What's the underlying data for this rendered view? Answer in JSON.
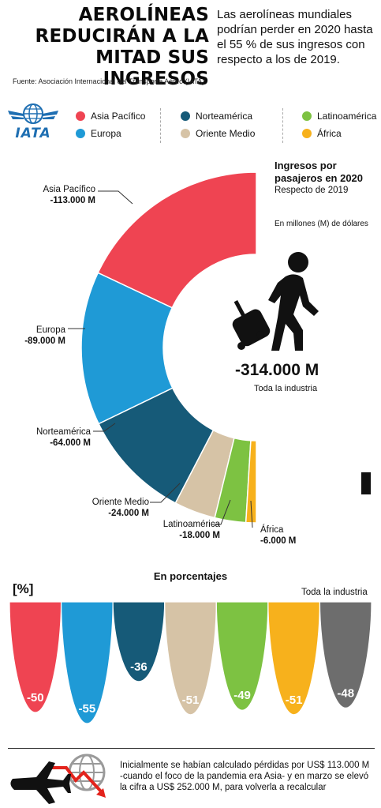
{
  "header": {
    "title_lines": [
      "AEROLÍNEAS",
      "REDUCIRÁN A LA",
      "MITAD SUS INGRESOS"
    ],
    "subtitle": "Las aerolíneas mundiales podrían perder en 2020 hasta el 55 % de sus ingresos con respecto a los de 2019.",
    "source": "Fuente: Asociación Internacional del Transporte Aéreo (IATA)"
  },
  "logo": {
    "text": "IATA"
  },
  "legend": [
    {
      "name": "Asia Pacífico",
      "color": "#ef4452"
    },
    {
      "name": "Europa",
      "color": "#1f9ad6"
    },
    {
      "name": "Norteamérica",
      "color": "#165a78"
    },
    {
      "name": "Oriente Medio",
      "color": "#d6c3a6"
    },
    {
      "name": "Latinoamérica",
      "color": "#7dc242"
    },
    {
      "name": "África",
      "color": "#f7b11c"
    }
  ],
  "ingresos": {
    "title_line1": "Ingresos por",
    "title_line2": "pasajeros en 2020",
    "subtitle": "Respecto de 2019",
    "units": "En millones (M) de dólares",
    "total_value": "-314.000 M",
    "total_label": "Toda la industria",
    "region_labels": [
      {
        "name": "Asia Pacífico",
        "value": "-113.000 M"
      },
      {
        "name": "Europa",
        "value": "-89.000 M"
      },
      {
        "name": "Norteamérica",
        "value": "-64.000 M"
      },
      {
        "name": "Oriente Medio",
        "value": "-24.000 M"
      },
      {
        "name": "Latinoamérica",
        "value": "-18.000 M"
      },
      {
        "name": "África",
        "value": "-6.000 M"
      }
    ]
  },
  "porcentajes": {
    "title": "En porcentajes",
    "unit": "[%]",
    "industry_label": "Toda la industria"
  },
  "note": {
    "text": "Inicialmente se habían calculado pérdidas por US$ 113.000 M -cuando el foco de la pandemia era Asia- y en marzo se elevó la cifra a US$ 252.000 M, para volverla a recalcular"
  },
  "chart_data": [
    {
      "type": "pie",
      "title": "Ingresos por pasajeros en 2020",
      "subtitle": "Respecto de 2019",
      "units": "En millones (M) de dólares",
      "categories": [
        "Asia Pacífico",
        "Europa",
        "Norteamérica",
        "Oriente Medio",
        "Latinoamérica",
        "África"
      ],
      "values": [
        -113000,
        -89000,
        -64000,
        -24000,
        -18000,
        -6000
      ],
      "colors": [
        "#ef4452",
        "#1f9ad6",
        "#165a78",
        "#d6c3a6",
        "#7dc242",
        "#f7b11c"
      ],
      "total": -314000
    },
    {
      "type": "bar",
      "title": "En porcentajes",
      "categories": [
        "Asia Pacífico",
        "Europa",
        "Norteamérica",
        "Oriente Medio",
        "Latinoamérica",
        "África",
        "Toda la industria"
      ],
      "values": [
        -50,
        -55,
        -36,
        -51,
        -49,
        -51,
        -48
      ],
      "colors": [
        "#ef4452",
        "#1f9ad6",
        "#165a78",
        "#d6c3a6",
        "#7dc242",
        "#f7b11c",
        "#6d6d6d"
      ]
    }
  ]
}
